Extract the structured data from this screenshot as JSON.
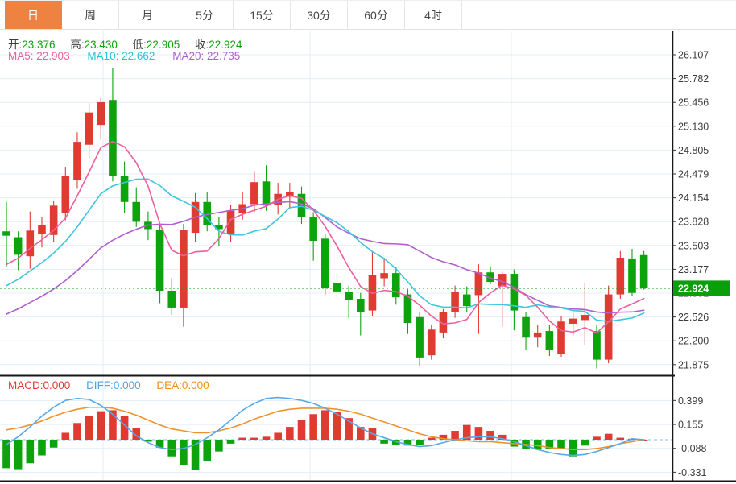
{
  "tabs": [
    {
      "id": "day",
      "label": "日",
      "active": true
    },
    {
      "id": "week",
      "label": "周",
      "active": false
    },
    {
      "id": "month",
      "label": "月",
      "active": false
    },
    {
      "id": "m5",
      "label": "5分",
      "active": false
    },
    {
      "id": "m15",
      "label": "15分",
      "active": false
    },
    {
      "id": "m30",
      "label": "30分",
      "active": false
    },
    {
      "id": "m60",
      "label": "60分",
      "active": false
    },
    {
      "id": "h4",
      "label": "4时",
      "active": false
    }
  ],
  "legend": {
    "ohlc": [
      {
        "label": "开:",
        "value": "23.376"
      },
      {
        "label": "高:",
        "value": "23.430"
      },
      {
        "label": "低:",
        "value": "22.905"
      },
      {
        "label": "收:",
        "value": "22.924"
      }
    ],
    "ma": [
      {
        "label": "MA5:",
        "value": "22.903"
      },
      {
        "label": "MA10:",
        "value": "22.662"
      },
      {
        "label": "MA20:",
        "value": "22.735"
      }
    ]
  },
  "macd_legend": [
    {
      "label": "MACD:",
      "value": "0.000"
    },
    {
      "label": "DIFF:",
      "value": "0.000"
    },
    {
      "label": "DEA:",
      "value": "0.000"
    }
  ],
  "axis": {
    "current_price_label": "22.924"
  },
  "colors": {
    "up": "#e03b32",
    "down": "#0da30d",
    "accent_tab": "#ee8240",
    "ma5": "#ee5f9e",
    "ma10": "#3cc6e0",
    "ma20": "#b060ce",
    "diff_line": "#58a8ea",
    "dea_line": "#f0922c",
    "zero_dash": "#a9d9f2",
    "price_dash": "#0aa50a",
    "grid": "#e3edf7",
    "axis_text": "#3c3c3c",
    "badge": "#0b9e0b"
  },
  "chart_data": {
    "type": "candlestick+macd",
    "price_ticks": [
      26.107,
      25.782,
      25.456,
      25.13,
      24.805,
      24.479,
      24.154,
      23.828,
      23.503,
      23.177,
      22.851,
      22.526,
      22.2,
      21.875
    ],
    "current_price": 22.924,
    "ohlc_last": {
      "open": 23.376,
      "high": 23.43,
      "low": 22.905,
      "close": 22.924
    },
    "ma_values": {
      "MA5": 22.903,
      "MA10": 22.662,
      "MA20": 22.735
    },
    "ma_periods": [
      5,
      10,
      20
    ],
    "ma_seed": [
      21.9,
      21.95,
      22.0,
      22.05,
      22.1,
      22.15,
      22.2,
      22.26,
      22.32,
      22.38,
      22.44,
      22.5,
      22.58,
      22.66,
      22.75,
      22.85,
      22.95,
      23.05,
      23.2,
      23.4
    ],
    "candles": [
      [
        23.7,
        24.1,
        23.22,
        23.64
      ],
      [
        23.62,
        23.7,
        23.17,
        23.38
      ],
      [
        23.36,
        23.97,
        23.19,
        23.71
      ],
      [
        23.66,
        23.89,
        23.48,
        23.79
      ],
      [
        23.65,
        24.12,
        23.55,
        24.05
      ],
      [
        23.95,
        24.58,
        23.85,
        24.46
      ],
      [
        24.4,
        25.05,
        24.28,
        24.92
      ],
      [
        24.88,
        25.45,
        24.7,
        25.32
      ],
      [
        25.15,
        25.52,
        24.95,
        25.46
      ],
      [
        25.49,
        25.92,
        24.38,
        24.46
      ],
      [
        24.46,
        24.65,
        23.95,
        24.1
      ],
      [
        24.1,
        24.3,
        23.76,
        23.83
      ],
      [
        23.83,
        23.97,
        23.58,
        23.73
      ],
      [
        23.72,
        23.8,
        22.72,
        22.89
      ],
      [
        22.89,
        23.06,
        22.56,
        22.66
      ],
      [
        22.66,
        23.8,
        22.4,
        23.72
      ],
      [
        23.68,
        24.22,
        23.56,
        24.1
      ],
      [
        24.1,
        24.24,
        23.7,
        23.78
      ],
      [
        23.79,
        23.9,
        23.5,
        23.73
      ],
      [
        23.67,
        24.06,
        23.56,
        23.98
      ],
      [
        23.95,
        24.24,
        23.86,
        24.07
      ],
      [
        24.07,
        24.52,
        23.96,
        24.37
      ],
      [
        24.38,
        24.6,
        23.98,
        24.05
      ],
      [
        24.06,
        24.36,
        23.93,
        24.21
      ],
      [
        24.17,
        24.36,
        24.0,
        24.23
      ],
      [
        24.21,
        24.31,
        23.8,
        23.89
      ],
      [
        23.89,
        23.96,
        23.3,
        23.57
      ],
      [
        23.6,
        23.67,
        22.84,
        22.93
      ],
      [
        22.99,
        23.12,
        22.8,
        22.88
      ],
      [
        22.87,
        22.96,
        22.52,
        22.76
      ],
      [
        22.78,
        22.86,
        22.28,
        22.6
      ],
      [
        22.62,
        23.43,
        22.54,
        23.1
      ],
      [
        23.06,
        23.33,
        22.95,
        23.13
      ],
      [
        23.13,
        23.21,
        22.7,
        22.8
      ],
      [
        22.84,
        22.91,
        22.3,
        22.45
      ],
      [
        22.53,
        22.6,
        21.87,
        21.98
      ],
      [
        22.01,
        22.42,
        21.95,
        22.36
      ],
      [
        22.32,
        22.64,
        22.24,
        22.6
      ],
      [
        22.6,
        22.96,
        22.52,
        22.87
      ],
      [
        22.84,
        22.95,
        22.6,
        22.68
      ],
      [
        22.83,
        23.25,
        22.3,
        23.14
      ],
      [
        23.14,
        23.22,
        22.98,
        23.01
      ],
      [
        22.95,
        23.15,
        22.4,
        23.12
      ],
      [
        23.12,
        23.18,
        22.35,
        22.62
      ],
      [
        22.53,
        22.6,
        22.08,
        22.25
      ],
      [
        22.25,
        22.42,
        22.12,
        22.32
      ],
      [
        22.34,
        22.42,
        22.0,
        22.08
      ],
      [
        22.03,
        22.54,
        21.99,
        22.47
      ],
      [
        22.44,
        22.62,
        22.28,
        22.51
      ],
      [
        22.49,
        23.0,
        22.15,
        22.56
      ],
      [
        22.34,
        22.42,
        21.83,
        21.95
      ],
      [
        21.95,
        22.96,
        21.9,
        22.84
      ],
      [
        22.84,
        23.43,
        22.78,
        23.34
      ],
      [
        23.33,
        23.46,
        22.82,
        22.86
      ],
      [
        23.376,
        23.43,
        22.905,
        22.924
      ]
    ],
    "macd": {
      "ticks": [
        0.399,
        0.155,
        -0.088,
        -0.331
      ],
      "last": {
        "macd": 0.0,
        "diff": 0.0,
        "dea": 0.0
      },
      "histogram": [
        -0.29,
        -0.3,
        -0.24,
        -0.16,
        -0.08,
        0.07,
        0.17,
        0.24,
        0.29,
        0.3,
        0.24,
        0.12,
        -0.02,
        -0.08,
        -0.17,
        -0.26,
        -0.31,
        -0.22,
        -0.12,
        -0.04,
        0.02,
        0.02,
        0.03,
        0.07,
        0.13,
        0.2,
        0.26,
        0.3,
        0.28,
        0.22,
        0.13,
        0.12,
        -0.04,
        -0.05,
        -0.06,
        -0.05,
        0.02,
        0.05,
        0.09,
        0.15,
        0.13,
        0.09,
        0.05,
        -0.07,
        -0.09,
        -0.1,
        -0.09,
        -0.09,
        -0.17,
        -0.06,
        0.03,
        0.06,
        0.02,
        0.01,
        0.0
      ],
      "diff": [
        -0.05,
        0.03,
        0.13,
        0.24,
        0.33,
        0.4,
        0.42,
        0.41,
        0.35,
        0.26,
        0.15,
        0.04,
        -0.03,
        -0.08,
        -0.1,
        -0.09,
        -0.05,
        0.02,
        0.1,
        0.2,
        0.3,
        0.37,
        0.42,
        0.43,
        0.42,
        0.4,
        0.37,
        0.32,
        0.26,
        0.19,
        0.12,
        0.06,
        0.02,
        -0.02,
        -0.05,
        -0.07,
        -0.06,
        -0.03,
        0.0,
        0.02,
        0.03,
        0.03,
        0.01,
        -0.02,
        -0.06,
        -0.1,
        -0.13,
        -0.15,
        -0.16,
        -0.15,
        -0.12,
        -0.08,
        -0.04,
        0.01,
        0.0
      ],
      "dea": [
        0.1,
        0.12,
        0.15,
        0.19,
        0.24,
        0.28,
        0.31,
        0.33,
        0.33,
        0.32,
        0.29,
        0.25,
        0.2,
        0.15,
        0.11,
        0.09,
        0.07,
        0.07,
        0.09,
        0.12,
        0.16,
        0.21,
        0.25,
        0.29,
        0.31,
        0.32,
        0.32,
        0.32,
        0.31,
        0.29,
        0.26,
        0.22,
        0.18,
        0.14,
        0.1,
        0.06,
        0.03,
        0.01,
        0.0,
        -0.01,
        -0.02,
        -0.02,
        -0.03,
        -0.04,
        -0.05,
        -0.06,
        -0.08,
        -0.09,
        -0.1,
        -0.1,
        -0.09,
        -0.07,
        -0.04,
        -0.02,
        0.0
      ]
    }
  }
}
